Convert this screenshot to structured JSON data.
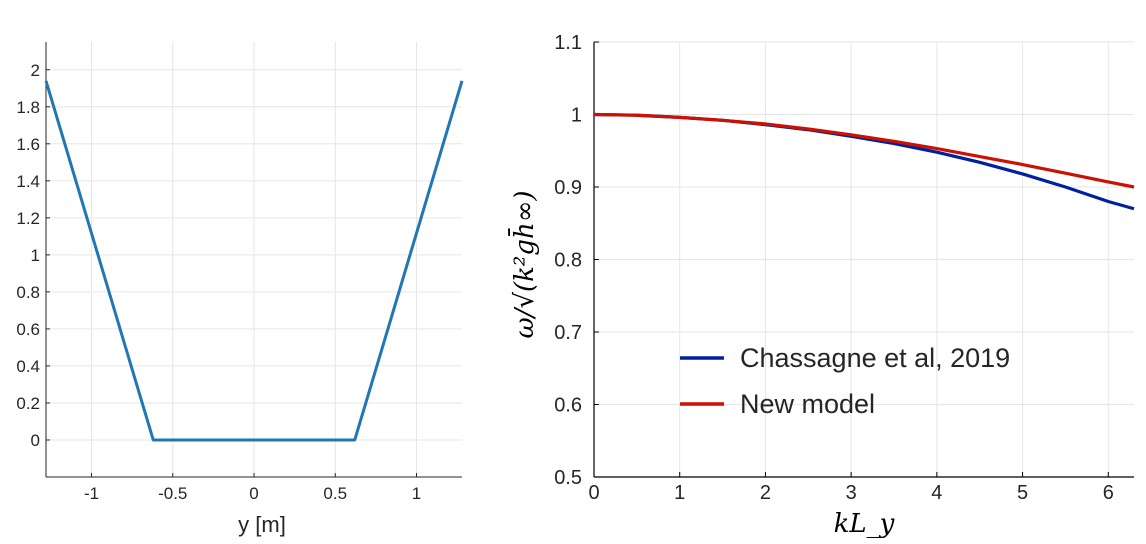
{
  "chart_data": [
    {
      "type": "line",
      "title": "",
      "xlabel": "y [m]",
      "ylabel": "",
      "xlim": [
        -1.28,
        1.28
      ],
      "ylim": [
        -0.2,
        2.15
      ],
      "grid": true,
      "x_ticks": [
        "-1",
        "-0.5",
        "0",
        "0.5",
        "1"
      ],
      "x_tick_values": [
        -1,
        -0.5,
        0,
        0.5,
        1
      ],
      "y_ticks": [
        "0",
        "0.2",
        "0.4",
        "0.6",
        "0.8",
        "1",
        "1.2",
        "1.4",
        "1.6",
        "1.8",
        "2"
      ],
      "y_tick_values": [
        0,
        0.2,
        0.4,
        0.6,
        0.8,
        1,
        1.2,
        1.4,
        1.6,
        1.8,
        2
      ],
      "series": [
        {
          "color": "#1f77b4",
          "x": [
            -1.28,
            -0.62,
            0.62,
            1.28
          ],
          "y": [
            1.94,
            0.0,
            0.0,
            1.94
          ]
        }
      ]
    },
    {
      "type": "line",
      "title": "",
      "xlabel": "kL_y",
      "ylabel": "ω/√(k²gh̄∞)",
      "xlim": [
        0,
        6.3
      ],
      "ylim": [
        0.5,
        1.1
      ],
      "grid": true,
      "legend_position": "bottom-right",
      "x_ticks": [
        "0",
        "1",
        "2",
        "3",
        "4",
        "5",
        "6"
      ],
      "x_tick_values": [
        0,
        1,
        2,
        3,
        4,
        5,
        6
      ],
      "y_ticks": [
        "0.5",
        "0.6",
        "0.7",
        "0.8",
        "0.9",
        "1",
        "1.1"
      ],
      "y_tick_values": [
        0.5,
        0.6,
        0.7,
        0.8,
        0.9,
        1.0,
        1.1
      ],
      "series": [
        {
          "name": "Chassagne et al, 2019",
          "color": "#00209f",
          "x": [
            0,
            0.5,
            1,
            1.5,
            2,
            2.5,
            3,
            3.5,
            4,
            4.5,
            5,
            5.5,
            6,
            6.3
          ],
          "y": [
            1.0,
            0.999,
            0.996,
            0.992,
            0.986,
            0.979,
            0.97,
            0.96,
            0.948,
            0.934,
            0.918,
            0.9,
            0.88,
            0.87
          ]
        },
        {
          "name": "New model",
          "color": "#cc1100",
          "x": [
            0,
            0.5,
            1,
            1.5,
            2,
            2.5,
            3,
            3.5,
            4,
            4.5,
            5,
            5.5,
            6,
            6.3
          ],
          "y": [
            1.0,
            0.999,
            0.996,
            0.992,
            0.987,
            0.98,
            0.972,
            0.963,
            0.953,
            0.942,
            0.931,
            0.919,
            0.907,
            0.9
          ]
        }
      ]
    }
  ]
}
